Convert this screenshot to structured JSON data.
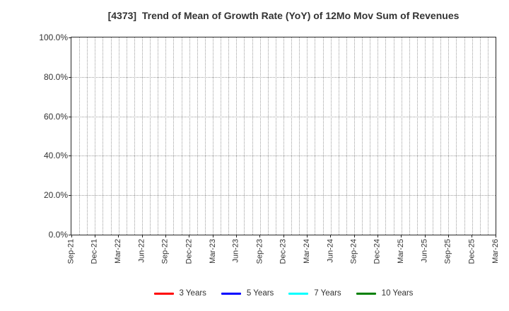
{
  "chart_data": {
    "type": "line",
    "title": "[4373]  Trend of Mean of Growth Rate (YoY) of 12Mo Mov Sum of Revenues",
    "x_axis": {
      "tick_labels": [
        "Sep-21",
        "Dec-21",
        "Mar-22",
        "Jun-22",
        "Sep-22",
        "Dec-22",
        "Mar-23",
        "Jun-23",
        "Sep-23",
        "Dec-23",
        "Mar-24",
        "Jun-24",
        "Sep-24",
        "Dec-24",
        "Mar-25",
        "Jun-25",
        "Sep-25",
        "Dec-25",
        "Mar-26"
      ],
      "tick_interval_months": 3,
      "gridline_interval_months": 1,
      "label_rotation_deg": 90
    },
    "y_axis": {
      "tick_labels": [
        "0.0%",
        "20.0%",
        "40.0%",
        "60.0%",
        "80.0%",
        "100.0%"
      ],
      "tick_values": [
        0,
        20,
        40,
        60,
        80,
        100
      ],
      "min": 0,
      "max": 100,
      "unit": "%"
    },
    "grid": true,
    "legend_position": "bottom",
    "series": [
      {
        "name": "3 Years",
        "color": "#ff0000",
        "values": []
      },
      {
        "name": "5 Years",
        "color": "#0000ff",
        "values": []
      },
      {
        "name": "7 Years",
        "color": "#00ffff",
        "values": []
      },
      {
        "name": "10 Years",
        "color": "#008000",
        "values": []
      }
    ],
    "note": "Plot area contains no drawn data lines; only gridlines are visible."
  },
  "colors": {
    "background": "#ffffff",
    "axis_border": "#262626",
    "gridline": "#9e9e9e",
    "text": "#333333"
  }
}
